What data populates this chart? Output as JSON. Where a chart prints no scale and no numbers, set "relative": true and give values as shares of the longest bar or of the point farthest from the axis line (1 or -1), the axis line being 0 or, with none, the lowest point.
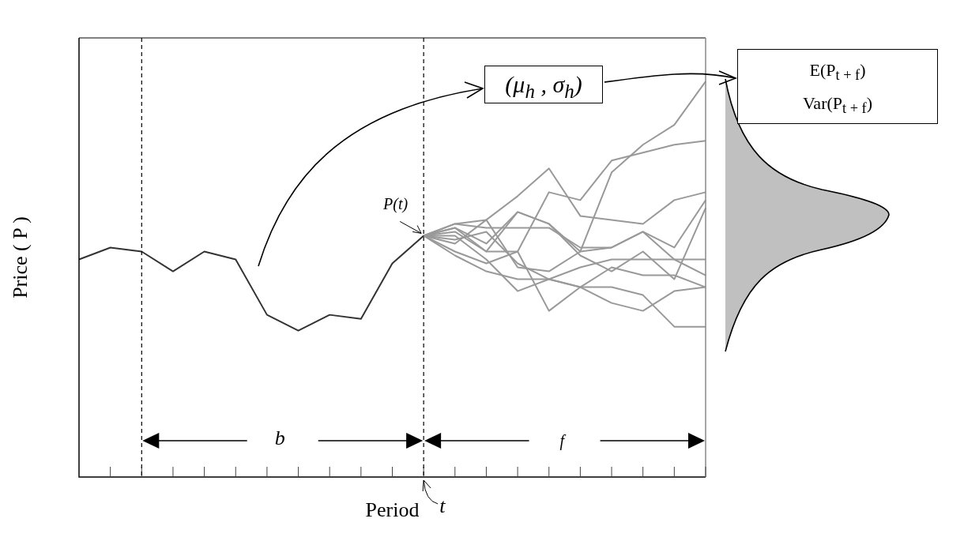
{
  "chart_data": {
    "type": "line",
    "relative": true,
    "xlabel": "Period",
    "ylabel": "Price ( P )",
    "categories": [
      null,
      null,
      null,
      null,
      null,
      null,
      null,
      null,
      null,
      null,
      null,
      null,
      null,
      null,
      null,
      null,
      null,
      null,
      null,
      null,
      null
    ],
    "series": [
      {
        "color": "#333333",
        "values": [
          0.55,
          0.58,
          0.57,
          0.52,
          0.57,
          0.55,
          0.41,
          0.37,
          0.41,
          0.4,
          0.54,
          0.61,
          null,
          null,
          null,
          null,
          null,
          null,
          null,
          null,
          null
        ]
      },
      {
        "color": "#999999",
        "values": [
          null,
          null,
          null,
          null,
          null,
          null,
          null,
          null,
          null,
          null,
          null,
          0.61,
          0.63,
          0.59,
          0.67,
          0.64,
          0.57,
          0.77,
          0.84,
          0.89,
          1
        ]
      },
      {
        "color": "#999999",
        "values": [
          null,
          null,
          null,
          null,
          null,
          null,
          null,
          null,
          null,
          null,
          null,
          0.61,
          0.63,
          0.57,
          0.57,
          0.72,
          0.7,
          0.8,
          0.82,
          0.84,
          0.85
        ]
      },
      {
        "color": "#999999",
        "values": [
          null,
          null,
          null,
          null,
          null,
          null,
          null,
          null,
          null,
          null,
          null,
          0.61,
          0.64,
          0.65,
          0.71,
          0.78,
          0.66,
          0.65,
          0.64,
          0.7,
          0.72
        ]
      },
      {
        "color": "#999999",
        "values": [
          null,
          null,
          null,
          null,
          null,
          null,
          null,
          null,
          null,
          null,
          null,
          0.61,
          0.64,
          0.63,
          0.63,
          0.63,
          0.58,
          0.58,
          0.62,
          0.58,
          0.7
        ]
      },
      {
        "color": "#999999",
        "values": [
          null,
          null,
          null,
          null,
          null,
          null,
          null,
          null,
          null,
          null,
          null,
          0.61,
          0.62,
          0.57,
          0.67,
          0.64,
          0.56,
          0.52,
          0.57,
          0.5,
          0.68
        ]
      },
      {
        "color": "#999999",
        "values": [
          null,
          null,
          null,
          null,
          null,
          null,
          null,
          null,
          null,
          null,
          null,
          0.61,
          0.56,
          0.52,
          0.5,
          0.5,
          0.48,
          0.48,
          0.46,
          0.38,
          0.38
        ]
      },
      {
        "color": "#999999",
        "values": [
          null,
          null,
          null,
          null,
          null,
          null,
          null,
          null,
          null,
          null,
          null,
          0.61,
          0.59,
          0.65,
          0.53,
          0.52,
          0.57,
          0.58,
          0.62,
          0.55,
          0.55
        ]
      },
      {
        "color": "#999999",
        "values": [
          null,
          null,
          null,
          null,
          null,
          null,
          null,
          null,
          null,
          null,
          null,
          0.61,
          0.61,
          0.55,
          0.47,
          0.5,
          0.53,
          0.55,
          0.55,
          0.55,
          0.51
        ]
      },
      {
        "color": "#999999",
        "values": [
          null,
          null,
          null,
          null,
          null,
          null,
          null,
          null,
          null,
          null,
          null,
          0.61,
          0.57,
          0.54,
          0.57,
          0.42,
          0.48,
          0.53,
          0.51,
          0.51,
          0.48
        ]
      },
      {
        "color": "#999999",
        "values": [
          null,
          null,
          null,
          null,
          null,
          null,
          null,
          null,
          null,
          null,
          null,
          0.61,
          0.6,
          0.62,
          0.54,
          0.5,
          0.48,
          0.44,
          0.42,
          0.47,
          0.48
        ]
      }
    ],
    "annotations": [
      "P(t)",
      "b",
      "f",
      "t",
      "(μ$_{h}$ , σ$_{h}$)",
      "E(P$_{t + f}$)",
      "Var(P$_{t + f}$)"
    ]
  }
}
